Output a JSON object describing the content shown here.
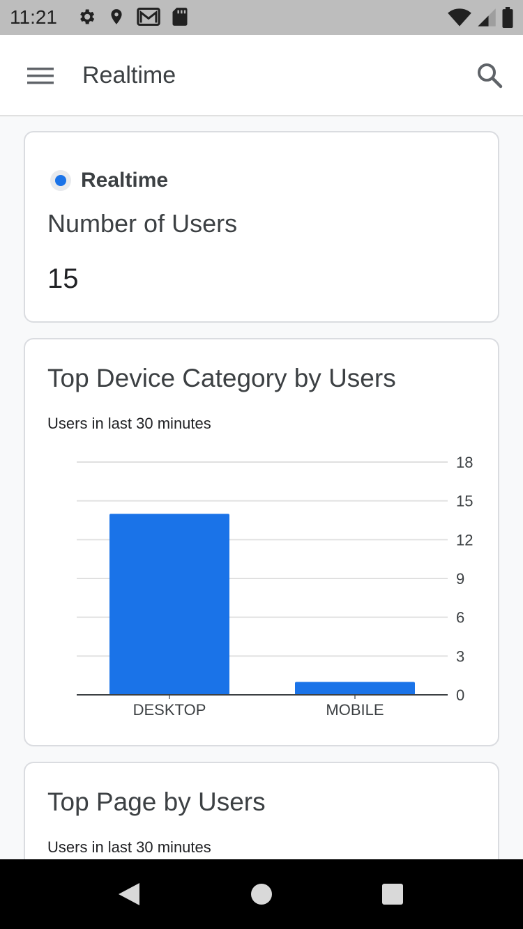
{
  "status_bar": {
    "time": "11:21",
    "left_icons": [
      "gear-icon",
      "location-pin-icon",
      "gmail-icon",
      "sd-card-icon"
    ],
    "right_icons": [
      "wifi-icon",
      "cell-signal-icon",
      "battery-icon"
    ]
  },
  "app_bar": {
    "title": "Realtime",
    "menu_icon": "hamburger-menu-icon",
    "search_icon": "search-icon"
  },
  "realtime_card": {
    "label": "Realtime",
    "title": "Number of Users",
    "count": "15"
  },
  "device_card": {
    "title": "Top Device Category by Users",
    "subtitle": "Users in last 30 minutes"
  },
  "page_card": {
    "title": "Top Page by Users",
    "subtitle": "Users in last 30 minutes"
  },
  "colors": {
    "accent": "#1a73e8",
    "grid": "#e0e0e0",
    "text": "#3c4043"
  },
  "chart_data": {
    "type": "bar",
    "categories": [
      "DESKTOP",
      "MOBILE"
    ],
    "values": [
      14,
      1
    ],
    "ylim": [
      0,
      18
    ],
    "yticks": [
      0,
      3,
      6,
      9,
      12,
      15,
      18
    ],
    "grid": true,
    "y_axis_side": "right"
  },
  "nav_bar": {
    "buttons": [
      "back-icon",
      "home-icon",
      "recents-icon"
    ]
  }
}
